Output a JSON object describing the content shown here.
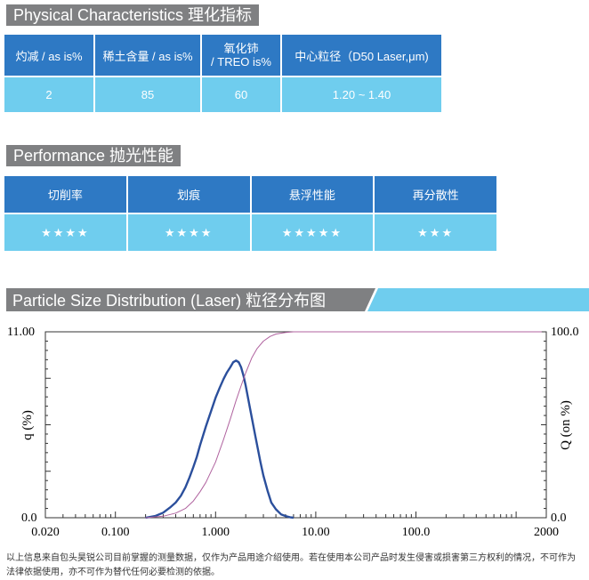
{
  "physical": {
    "title": "Physical Characteristics 理化指标",
    "headers": [
      "灼减 / as is%",
      "稀土含量 / as is%",
      "氧化铈\n/ TREO is%",
      "中心粒径（D50 Laser,μm)"
    ],
    "values": [
      "2",
      "85",
      "60",
      "1.20 ~ 1.40"
    ]
  },
  "performance": {
    "title": "Performance 抛光性能",
    "headers": [
      "切削率",
      "划痕",
      "悬浮性能",
      "再分散性"
    ],
    "ratings": [
      4,
      4,
      5,
      3
    ],
    "star_glyphs": [
      "★★★★",
      "★★★★",
      "★★★★★",
      "★★★"
    ]
  },
  "psd": {
    "title": "Particle Size Distribution (Laser) 粒径分布图"
  },
  "chart_data": {
    "type": "line",
    "xscale": "log",
    "xlim": [
      0.02,
      2000
    ],
    "x_ticks": [
      "0.020",
      "0.100",
      "1.000",
      "10.00",
      "100.0",
      "2000"
    ],
    "ylabel": "q (%)",
    "ylim": [
      0,
      11
    ],
    "y_ticks": [
      "0.0",
      "11.00"
    ],
    "y2label": "Q (on %)",
    "y2lim": [
      0,
      100
    ],
    "y2_ticks": [
      "0.0",
      "100.0"
    ],
    "grid": false,
    "series": [
      {
        "axis": "left",
        "color": "#2b4f9c",
        "x": [
          0.2,
          0.25,
          0.3,
          0.35,
          0.4,
          0.45,
          0.5,
          0.55,
          0.6,
          0.65,
          0.7,
          0.8,
          0.9,
          1.0,
          1.1,
          1.2,
          1.3,
          1.4,
          1.5,
          1.6,
          1.7,
          1.8,
          1.9,
          2.0,
          2.2,
          2.5,
          2.8,
          3.0,
          3.3,
          3.6,
          4.0,
          4.5,
          5.0,
          5.5,
          6.0
        ],
        "y": [
          0.0,
          0.1,
          0.3,
          0.6,
          0.9,
          1.3,
          1.8,
          2.4,
          3.0,
          3.6,
          4.3,
          5.4,
          6.3,
          7.1,
          7.7,
          8.2,
          8.6,
          8.9,
          9.2,
          9.3,
          9.2,
          8.9,
          8.4,
          7.8,
          6.5,
          4.8,
          3.3,
          2.5,
          1.6,
          0.9,
          0.5,
          0.2,
          0.1,
          0.03,
          0.0
        ]
      },
      {
        "axis": "right",
        "color": "#b0639f",
        "x": [
          0.2,
          0.3,
          0.4,
          0.5,
          0.6,
          0.7,
          0.8,
          1.0,
          1.2,
          1.4,
          1.6,
          1.8,
          2.0,
          2.3,
          2.6,
          3.0,
          3.5,
          4.0,
          5.0,
          6.0
        ],
        "y": [
          0,
          0.8,
          2.5,
          5,
          9,
          14,
          19,
          30,
          42,
          53,
          63,
          71,
          78,
          86,
          91,
          95,
          97.5,
          98.8,
          99.6,
          100
        ]
      }
    ]
  },
  "footnote": {
    "line1": "以上信息来自包头昊锐公司目前掌握的测量数据，仅作为产品用途介绍使用。若在使用本公司产品时发生侵害或损害第三方权利的情况，不可作为",
    "line2": "法律依据使用，亦不可作为替代任何必要检测的依据。"
  }
}
